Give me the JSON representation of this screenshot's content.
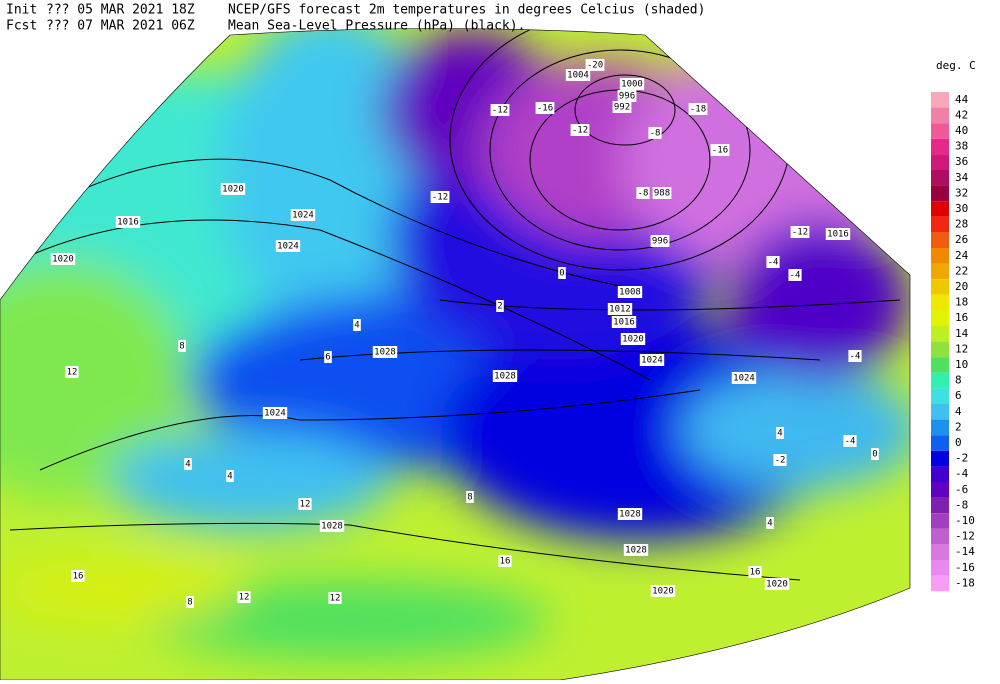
{
  "header": {
    "init_label": "Init",
    "init_time": "??? 05 MAR 2021 18Z",
    "fcst_label": "Fcst",
    "fcst_time": "??? 07 MAR 2021 06Z",
    "title": "NCEP/GFS forecast 2m temperatures in degrees Celcius (shaded)",
    "subtitle": "Mean Sea-Level Pressure (hPa) (black)."
  },
  "legend": {
    "title": "deg. C",
    "values": [
      44,
      42,
      40,
      38,
      36,
      34,
      32,
      30,
      28,
      26,
      24,
      22,
      20,
      18,
      16,
      14,
      12,
      10,
      8,
      6,
      4,
      2,
      0,
      -2,
      -4,
      -6,
      -8,
      -10,
      -12,
      -14,
      -16,
      -18
    ],
    "colors": [
      "#f8a8b8",
      "#f080a8",
      "#f05898",
      "#e82888",
      "#d01878",
      "#b00c60",
      "#980040",
      "#e00000",
      "#f02810",
      "#f05c10",
      "#f08800",
      "#f0a800",
      "#f0c800",
      "#f0e800",
      "#e0f400",
      "#bcf020",
      "#90e040",
      "#50e060",
      "#30f0b0",
      "#40e0e0",
      "#40c0f0",
      "#2090f0",
      "#1060f0",
      "#0000e0",
      "#4000d0",
      "#6000c0",
      "#8020b0",
      "#a040c0",
      "#c060d0",
      "#d878e0",
      "#e888f0",
      "#f89cf8"
    ]
  },
  "isobar_labels": [
    "1004",
    "1000",
    "996",
    "992",
    "988",
    "996",
    "1016",
    "1008",
    "1012",
    "1016",
    "1020",
    "1024",
    "1028",
    "1028",
    "1024",
    "1024",
    "1020",
    "1016",
    "1020",
    "1024",
    "1028",
    "1028",
    "1028",
    "1020",
    "1020",
    "1024"
  ],
  "temperature_labels": [
    "-20",
    "-12",
    "-16",
    "-18",
    "-16",
    "-12",
    "-8",
    "-12",
    "-8",
    "-4",
    "-4",
    "0",
    "2",
    "4",
    "6",
    "8",
    "12",
    "16",
    "12",
    "8",
    "4",
    "16",
    "12",
    "4",
    "-4",
    "0",
    "-4",
    "-2",
    "4",
    "12",
    "16",
    "8",
    "-12",
    "4"
  ]
}
